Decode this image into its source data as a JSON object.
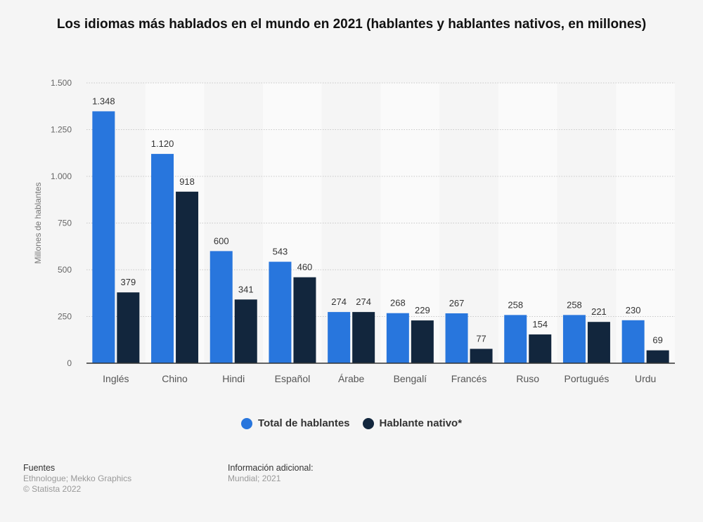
{
  "chart_data": {
    "type": "bar",
    "title": "Los idiomas más hablados en el mundo en 2021 (hablantes y hablantes nativos, en millones)",
    "xlabel": "",
    "ylabel": "Millones de hablantes",
    "ylim": [
      0,
      1500
    ],
    "yticks": [
      0,
      250,
      500,
      750,
      1000,
      1250,
      1500
    ],
    "ytick_labels": [
      "0",
      "250",
      "500",
      "750",
      "1.000",
      "1.250",
      "1.500"
    ],
    "grid": true,
    "legend_position": "bottom",
    "categories": [
      "Inglés",
      "Chino",
      "Hindi",
      "Español",
      "Árabe",
      "Bengalí",
      "Francés",
      "Ruso",
      "Portugués",
      "Urdu"
    ],
    "series": [
      {
        "name": "Total de hablantes",
        "color": "#2876dd",
        "values": [
          1348,
          1120,
          600,
          543,
          274,
          268,
          267,
          258,
          258,
          230
        ],
        "labels": [
          "1.348",
          "1.120",
          "600",
          "543",
          "274",
          "268",
          "267",
          "258",
          "258",
          "230"
        ]
      },
      {
        "name": "Hablante nativo*",
        "color": "#12263d",
        "values": [
          379,
          918,
          341,
          460,
          274,
          229,
          77,
          154,
          221,
          69
        ],
        "labels": [
          "379",
          "918",
          "341",
          "460",
          "274",
          "229",
          "77",
          "154",
          "221",
          "69"
        ]
      }
    ]
  },
  "legend": {
    "items": [
      {
        "label": "Total de hablantes",
        "color": "#2876dd"
      },
      {
        "label": "Hablante nativo*",
        "color": "#12263d"
      }
    ]
  },
  "footer": {
    "sources_title": "Fuentes",
    "sources_text": "Ethnologue; Mekko Graphics",
    "copyright": "© Statista 2022",
    "info_title": "Información adicional:",
    "info_text": "Mundial; 2021"
  }
}
